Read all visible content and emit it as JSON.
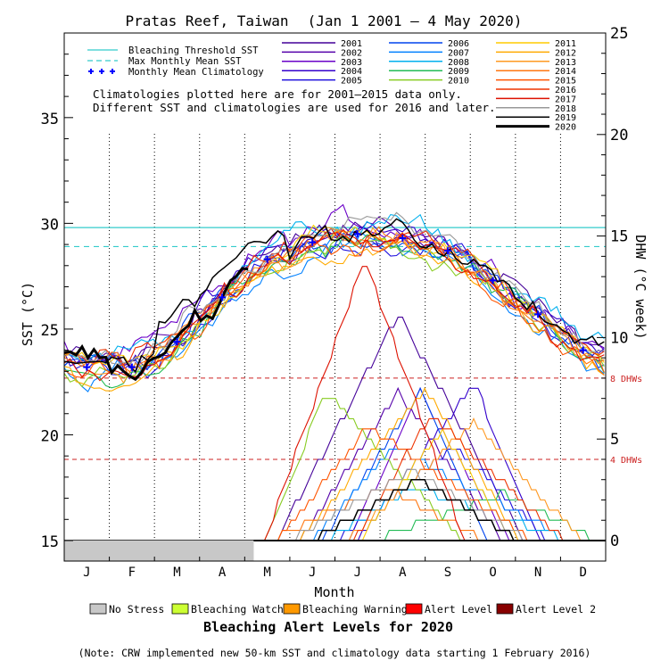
{
  "chart_data": {
    "type": "line",
    "title": "Pratas Reef, Taiwan",
    "date_range": "(Jan 1 2001 – 4 May 2020)",
    "xlabel": "Month",
    "ylabel_left": "SST (°C)",
    "ylabel_right": "DHW (°C week)",
    "ylim_left": [
      15,
      39
    ],
    "ylim_right": [
      0,
      25
    ],
    "yticks_left": [
      "15",
      "20",
      "25",
      "30",
      "35"
    ],
    "yticks_right": [
      "0",
      "5",
      "10",
      "15",
      "20",
      "25"
    ],
    "months": [
      "J",
      "F",
      "M",
      "A",
      "M",
      "J",
      "J",
      "A",
      "S",
      "O",
      "N",
      "D"
    ],
    "reference_lines": {
      "bleaching_threshold_sst": 29.8,
      "max_monthly_mean_sst": 28.9,
      "dhw_levels": [
        {
          "label": "8 DHWs",
          "value": 8
        },
        {
          "label": "4 DHWs",
          "value": 4
        }
      ]
    },
    "legend_left": [
      {
        "label": "Bleaching Threshold SST",
        "color": "#33cccc",
        "style": "solid"
      },
      {
        "label": "Max Monthly Mean SST",
        "color": "#33cccc",
        "style": "dashed"
      },
      {
        "label": "Monthly Mean Climatology",
        "color": "#0000ff",
        "style": "plus"
      }
    ],
    "note_lines": [
      "Climatologies plotted here are for 2001–2015 data only.",
      "Different SST and climatologies are used for 2016 and later."
    ],
    "years": [
      {
        "year": "2001",
        "color": "#440099"
      },
      {
        "year": "2002",
        "color": "#5500aa"
      },
      {
        "year": "2003",
        "color": "#6a00c8"
      },
      {
        "year": "2004",
        "color": "#3300cc"
      },
      {
        "year": "2005",
        "color": "#1f10dd"
      },
      {
        "year": "2006",
        "color": "#0044ee"
      },
      {
        "year": "2007",
        "color": "#0080ff"
      },
      {
        "year": "2008",
        "color": "#00b0ee"
      },
      {
        "year": "2009",
        "color": "#22bb55"
      },
      {
        "year": "2010",
        "color": "#88cc22"
      },
      {
        "year": "2011",
        "color": "#ffcc00"
      },
      {
        "year": "2012",
        "color": "#ffaa00"
      },
      {
        "year": "2013",
        "color": "#ff9922"
      },
      {
        "year": "2014",
        "color": "#ff7711"
      },
      {
        "year": "2015",
        "color": "#ff5500"
      },
      {
        "year": "2016",
        "color": "#ee3300"
      },
      {
        "year": "2017",
        "color": "#dd1100"
      },
      {
        "year": "2018",
        "color": "#999999"
      },
      {
        "year": "2019",
        "color": "#000000"
      },
      {
        "year": "2020",
        "color": "#000000"
      }
    ],
    "climatology_mmm": [
      23.2,
      23.2,
      24.4,
      26.5,
      28.3,
      29.1,
      29.5,
      29.3,
      28.7,
      27.3,
      25.7,
      24.0
    ],
    "alert_legend_title": "Bleaching Alert Levels for 2020",
    "alert_levels": [
      {
        "label": "No Stress",
        "color": "#c8c8c8"
      },
      {
        "label": "Bleaching Watch",
        "color": "#ccff33"
      },
      {
        "label": "Bleaching Warning",
        "color": "#ff9900"
      },
      {
        "label": "Alert Level 1",
        "color": "#ff0000"
      },
      {
        "label": "Alert Level 2",
        "color": "#880000"
      }
    ],
    "alert_bar_2020": {
      "level": "No Stress",
      "from_month": 1,
      "to_month": 4.2
    },
    "footnote": "(Note: CRW implemented new 50-km SST and climatology data starting 1 February 2016)"
  }
}
